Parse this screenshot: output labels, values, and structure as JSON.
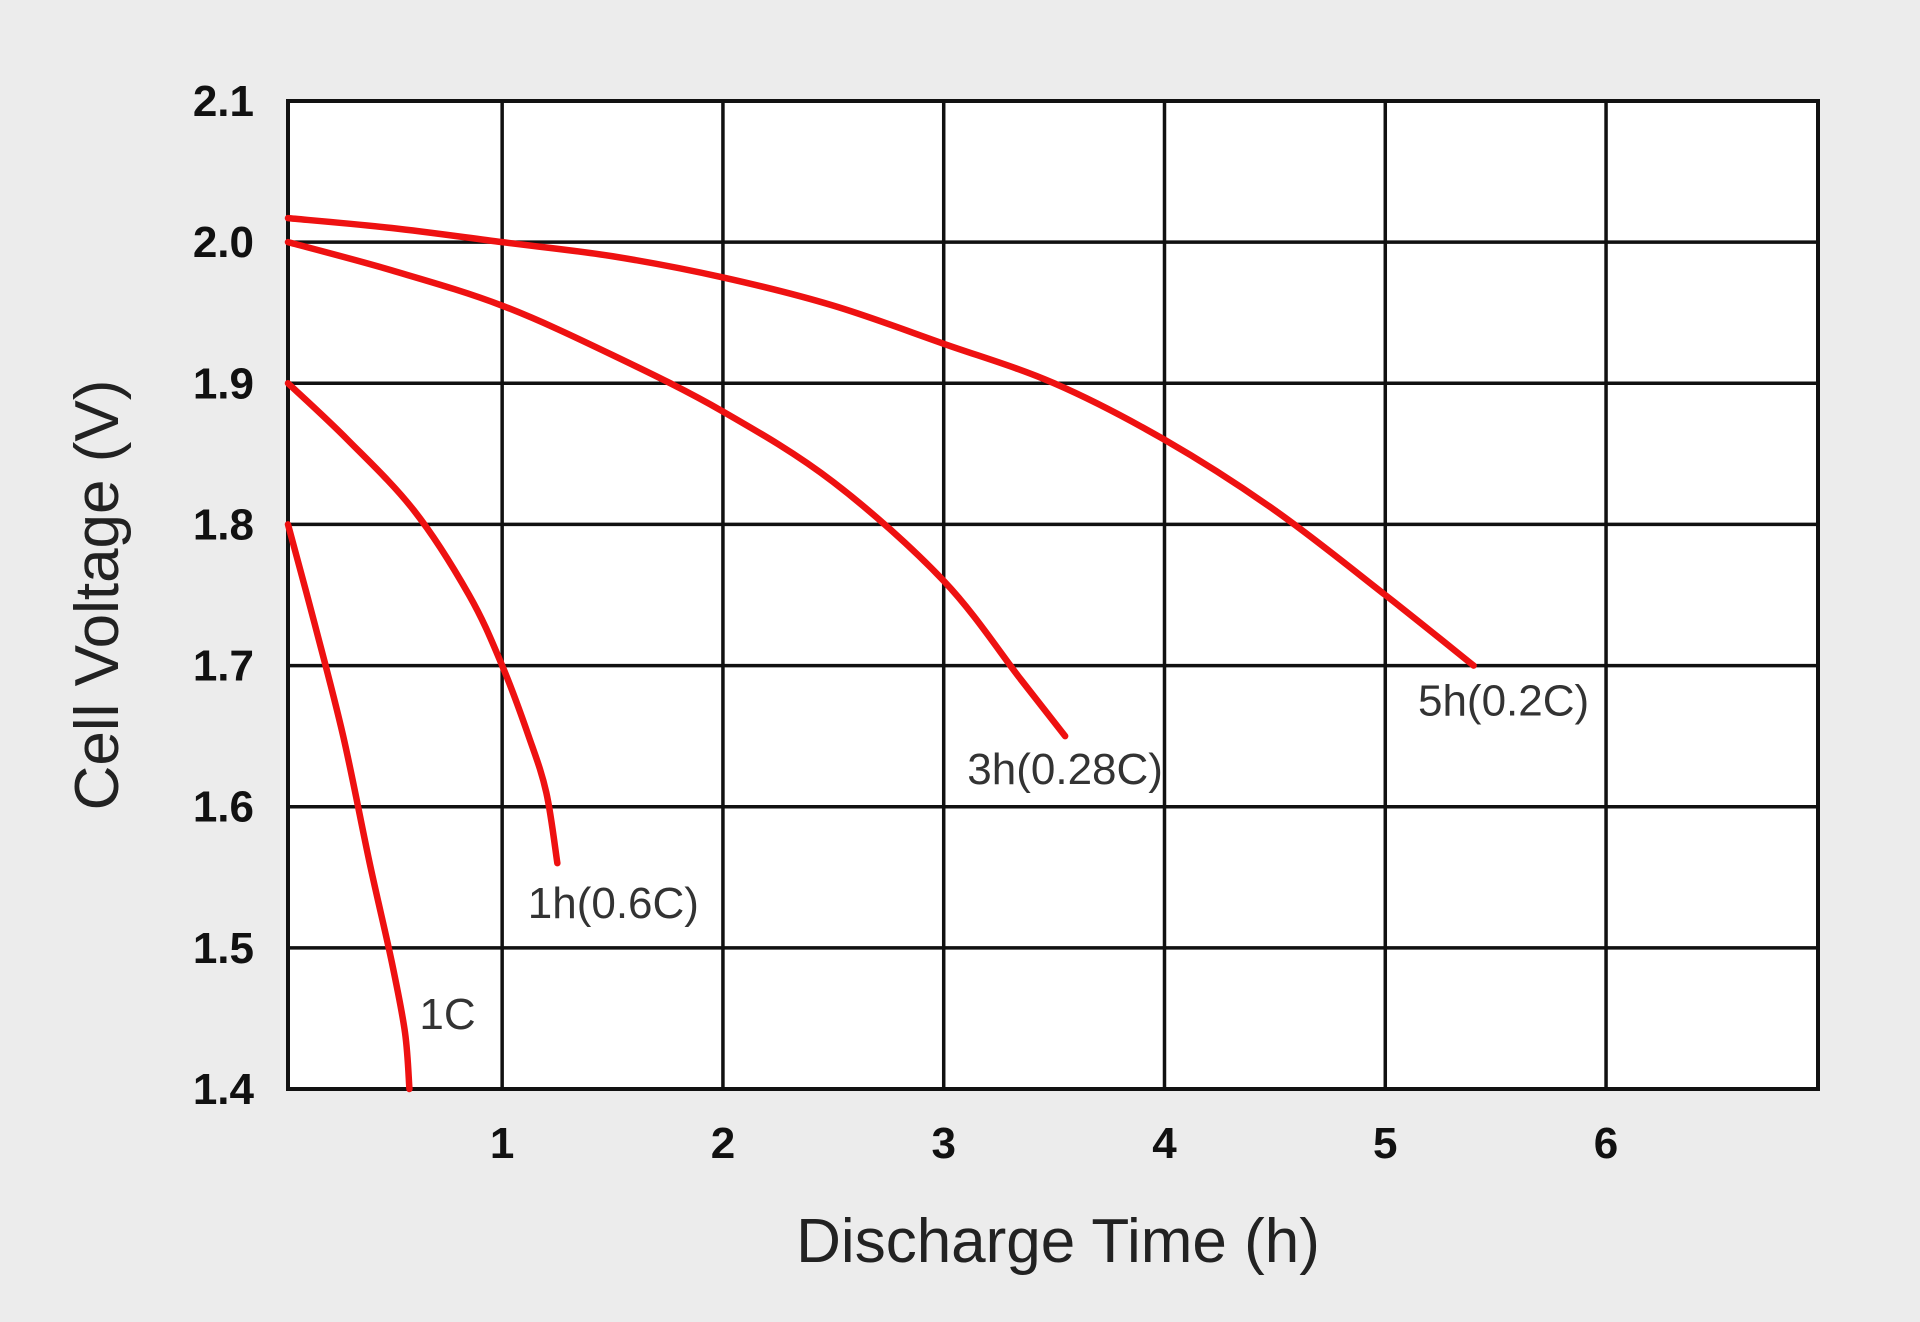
{
  "chart_data": {
    "type": "line",
    "title": "",
    "xlabel": "Discharge Time (h)",
    "ylabel": "Cell Voltage (V)",
    "xlim": [
      0.03,
      6.96
    ],
    "ylim": [
      1.4,
      2.1
    ],
    "x_ticks": [
      1,
      2,
      3,
      4,
      5,
      6
    ],
    "x_tick_labels": [
      "1",
      "2",
      "3",
      "4",
      "5",
      "6"
    ],
    "y_ticks": [
      1.4,
      1.5,
      1.6,
      1.7,
      1.8,
      1.9,
      2.0,
      2.1
    ],
    "y_tick_labels": [
      "1.4",
      "1.5",
      "1.6",
      "1.7",
      "1.8",
      "1.9",
      "2.0",
      "2.1"
    ],
    "grid": true,
    "line_color": "#ee1111",
    "series": [
      {
        "name": "1C",
        "x": [
          0.03,
          0.15,
          0.28,
          0.4,
          0.5,
          0.56,
          0.58
        ],
        "y": [
          1.8,
          1.73,
          1.65,
          1.56,
          1.49,
          1.44,
          1.4
        ]
      },
      {
        "name": "1h(0.6C)",
        "x": [
          0.03,
          0.3,
          0.6,
          0.85,
          1.0,
          1.12,
          1.2,
          1.25
        ],
        "y": [
          1.9,
          1.86,
          1.81,
          1.75,
          1.7,
          1.65,
          1.61,
          1.56
        ]
      },
      {
        "name": "3h(0.28C)",
        "x": [
          0.03,
          0.5,
          1.0,
          1.5,
          2.0,
          2.5,
          3.0,
          3.35,
          3.55
        ],
        "y": [
          2.0,
          1.98,
          1.955,
          1.92,
          1.88,
          1.83,
          1.76,
          1.69,
          1.65
        ]
      },
      {
        "name": "5h(0.2C)",
        "x": [
          0.03,
          0.5,
          1.0,
          1.5,
          2.0,
          2.5,
          3.0,
          3.5,
          4.0,
          4.5,
          5.0,
          5.4
        ],
        "y": [
          2.017,
          2.01,
          2.0,
          1.99,
          1.975,
          1.955,
          1.928,
          1.9,
          1.86,
          1.81,
          1.75,
          1.7
        ]
      }
    ]
  }
}
